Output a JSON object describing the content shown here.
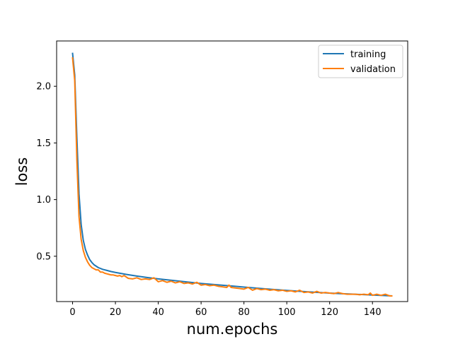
{
  "chart_data": {
    "type": "line",
    "title": "",
    "xlabel": "num.epochs",
    "ylabel": "loss",
    "xlim": [
      -7.45,
      156.45
    ],
    "ylim": [
      0.1,
      2.4
    ],
    "xticks": [
      0,
      20,
      40,
      60,
      80,
      100,
      120,
      140
    ],
    "yticks": [
      0.5,
      1.0,
      1.5,
      2.0
    ],
    "xtick_labels": [
      "0",
      "20",
      "40",
      "60",
      "80",
      "100",
      "120",
      "140"
    ],
    "ytick_labels": [
      "0.5",
      "1.0",
      "1.5",
      "2.0"
    ],
    "grid": false,
    "legend": {
      "position": "top-right",
      "entries": [
        "training",
        "validation"
      ]
    },
    "series": [
      {
        "name": "training",
        "color": "#1f77b4",
        "x": [
          0,
          1,
          2,
          3,
          4,
          5,
          6,
          7,
          8,
          9,
          10,
          12,
          14,
          16,
          18,
          20,
          25,
          30,
          35,
          40,
          45,
          50,
          55,
          60,
          65,
          70,
          75,
          80,
          85,
          90,
          95,
          100,
          105,
          110,
          115,
          120,
          125,
          130,
          135,
          140,
          145,
          149
        ],
        "y": [
          2.29,
          2.1,
          1.55,
          1.05,
          0.78,
          0.64,
          0.56,
          0.51,
          0.47,
          0.445,
          0.425,
          0.4,
          0.385,
          0.375,
          0.365,
          0.357,
          0.34,
          0.325,
          0.312,
          0.3,
          0.29,
          0.28,
          0.27,
          0.26,
          0.252,
          0.244,
          0.236,
          0.228,
          0.22,
          0.212,
          0.205,
          0.198,
          0.192,
          0.186,
          0.18,
          0.175,
          0.17,
          0.166,
          0.162,
          0.158,
          0.154,
          0.15
        ]
      },
      {
        "name": "validation",
        "color": "#ff7f0e",
        "x": [
          0,
          1,
          2,
          3,
          4,
          5,
          6,
          7,
          8,
          9,
          10,
          11,
          12,
          13,
          14,
          15,
          16,
          17,
          18,
          19,
          20,
          21,
          22,
          23,
          24,
          26,
          28,
          30,
          32,
          34,
          36,
          38,
          40,
          42,
          44,
          46,
          48,
          50,
          52,
          54,
          56,
          58,
          60,
          62,
          64,
          66,
          68,
          70,
          72,
          73,
          74,
          76,
          78,
          80,
          82,
          84,
          86,
          88,
          90,
          92,
          94,
          96,
          98,
          100,
          102,
          104,
          106,
          108,
          110,
          112,
          114,
          116,
          118,
          120,
          122,
          124,
          126,
          128,
          130,
          132,
          134,
          136,
          138,
          139,
          140,
          142,
          144,
          146,
          148,
          149
        ],
        "y": [
          2.25,
          2.05,
          1.35,
          0.85,
          0.65,
          0.55,
          0.49,
          0.45,
          0.42,
          0.4,
          0.39,
          0.38,
          0.38,
          0.36,
          0.36,
          0.35,
          0.345,
          0.34,
          0.335,
          0.335,
          0.33,
          0.325,
          0.33,
          0.32,
          0.33,
          0.305,
          0.3,
          0.31,
          0.295,
          0.3,
          0.295,
          0.31,
          0.275,
          0.285,
          0.27,
          0.28,
          0.265,
          0.275,
          0.26,
          0.265,
          0.255,
          0.27,
          0.245,
          0.25,
          0.24,
          0.245,
          0.235,
          0.23,
          0.225,
          0.245,
          0.225,
          0.22,
          0.215,
          0.21,
          0.225,
          0.2,
          0.215,
          0.205,
          0.21,
          0.2,
          0.205,
          0.195,
          0.2,
          0.19,
          0.195,
          0.185,
          0.2,
          0.18,
          0.185,
          0.175,
          0.19,
          0.175,
          0.18,
          0.175,
          0.17,
          0.18,
          0.17,
          0.165,
          0.165,
          0.165,
          0.16,
          0.165,
          0.16,
          0.175,
          0.155,
          0.165,
          0.155,
          0.165,
          0.15,
          0.15
        ]
      }
    ]
  }
}
